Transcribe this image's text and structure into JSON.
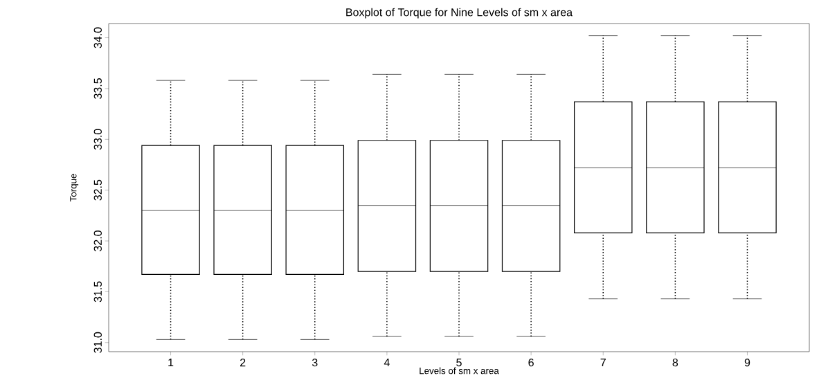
{
  "chart_data": {
    "type": "box",
    "title": "Boxplot of Torque for Nine Levels of sm x area",
    "xlabel": "Levels of sm x area",
    "ylabel": "Torque",
    "categories": [
      "1",
      "2",
      "3",
      "4",
      "5",
      "6",
      "7",
      "8",
      "9"
    ],
    "boxes": [
      {
        "low": 31.03,
        "q1": 31.67,
        "median": 32.3,
        "q3": 32.94,
        "high": 33.58
      },
      {
        "low": 31.03,
        "q1": 31.67,
        "median": 32.3,
        "q3": 32.94,
        "high": 33.58
      },
      {
        "low": 31.03,
        "q1": 31.67,
        "median": 32.3,
        "q3": 32.94,
        "high": 33.58
      },
      {
        "low": 31.06,
        "q1": 31.7,
        "median": 32.35,
        "q3": 32.99,
        "high": 33.64
      },
      {
        "low": 31.06,
        "q1": 31.7,
        "median": 32.35,
        "q3": 32.99,
        "high": 33.64
      },
      {
        "low": 31.06,
        "q1": 31.7,
        "median": 32.35,
        "q3": 32.99,
        "high": 33.64
      },
      {
        "low": 31.43,
        "q1": 32.08,
        "median": 32.72,
        "q3": 33.37,
        "high": 34.02
      },
      {
        "low": 31.43,
        "q1": 32.08,
        "median": 32.72,
        "q3": 33.37,
        "high": 34.02
      },
      {
        "low": 31.43,
        "q1": 32.08,
        "median": 32.72,
        "q3": 33.37,
        "high": 34.02
      }
    ],
    "color": "#000000",
    "ylim": [
      30.91,
      34.14
    ],
    "yticks": [
      {
        "value": 31,
        "label": "31.0"
      },
      {
        "value": 31.5,
        "label": "31.5"
      },
      {
        "value": 32,
        "label": "32.0"
      },
      {
        "value": 32.5,
        "label": "32.5"
      },
      {
        "value": 33,
        "label": "33.0"
      },
      {
        "value": 33.5,
        "label": "33.5"
      },
      {
        "value": 34,
        "label": "34.0"
      }
    ]
  }
}
